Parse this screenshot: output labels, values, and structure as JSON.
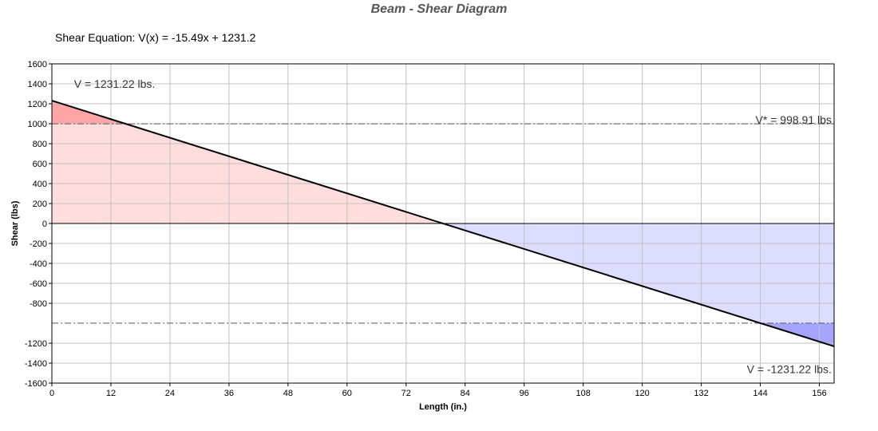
{
  "chart_data": {
    "type": "area",
    "title": "Beam - Shear Diagram",
    "subtitle": "Shear Equation:  V(x) = -15.49x + 1231.2",
    "xlabel": "Length (in.)",
    "ylabel": "Shear (lbs)",
    "xlim": [
      0,
      159
    ],
    "ylim": [
      -1600,
      1600
    ],
    "x_ticks": [
      0,
      12,
      24,
      36,
      48,
      60,
      72,
      84,
      96,
      108,
      120,
      132,
      144,
      156
    ],
    "y_ticks": [
      1600,
      1400,
      1200,
      1000,
      800,
      600,
      400,
      200,
      0,
      -200,
      -400,
      -600,
      -800,
      -1200,
      -1400,
      -1600
    ],
    "grid": true,
    "series": [
      {
        "x": [
          0,
          159
        ],
        "y": [
          1231.22,
          -1231.22
        ]
      }
    ],
    "reference_lines": [
      {
        "y": 998.91
      },
      {
        "y": -998.91
      }
    ],
    "annotations": [
      {
        "text": "V = 1231.22 lbs.",
        "x": 4.5,
        "y": 1400
      },
      {
        "text": "V* = 998.91 lbs",
        "x": 158.5,
        "y": 1040
      },
      {
        "text": "V = -1231.22 lbs.",
        "x": 158.5,
        "y": -1460
      }
    ],
    "colors": {
      "positive_fill": "#ffdddd",
      "positive_excess_fill": "#ffa5a5",
      "negative_fill": "#ddddff",
      "negative_excess_fill": "#a5a5ff",
      "line": "#000000",
      "grid": "#c0c0c0"
    }
  }
}
